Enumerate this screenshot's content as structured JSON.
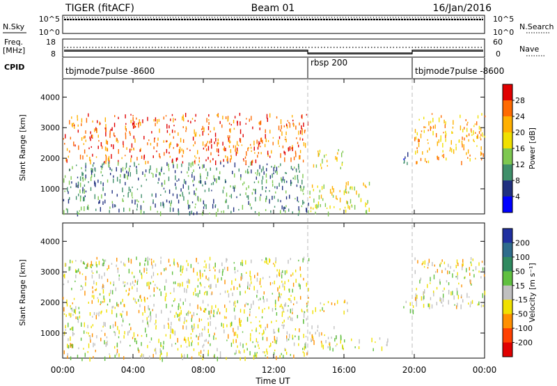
{
  "header": {
    "title": "TIGER (fitACF)",
    "beam": "Beam 01",
    "date": "16/Jan/2016"
  },
  "nsky_panel": {
    "left_label": "N.Sky",
    "right_label": "N.Search",
    "left_ticks": [
      "10^5",
      "10^0"
    ],
    "right_ticks": [
      "10^5",
      "10^0"
    ]
  },
  "freq_panel": {
    "left_label_line1": "Freq.",
    "left_label_line2": "[MHz]",
    "right_label": "Nave",
    "left_ticks": [
      "18",
      "8"
    ],
    "right_ticks": [
      "60",
      "0"
    ]
  },
  "cpid": {
    "label": "CPID",
    "segments": [
      {
        "text": "tbjmode7pulse -8600",
        "start_hour": 0,
        "end_hour": 14
      },
      {
        "text": "rbsp 200",
        "start_hour": 14,
        "end_hour": 20
      },
      {
        "text": "tbjmode7pulse -8600",
        "start_hour": 20,
        "end_hour": 24
      }
    ]
  },
  "power_panel": {
    "ylabel": "Slant Range [km]",
    "colorbar_label": "Power [dB]",
    "colorbar_ticks": [
      "28",
      "24",
      "20",
      "16",
      "12",
      "8",
      "4"
    ],
    "colorbar_colors": [
      "#e00000",
      "#ff6a00",
      "#ffb000",
      "#f0e000",
      "#7ec850",
      "#3f8f6a",
      "#203080",
      "#0000ff"
    ]
  },
  "velocity_panel": {
    "ylabel": "Slant Range [km]",
    "colorbar_label": "Velocity [m s⁻¹]",
    "colorbar_ticks": [
      "200",
      "100",
      "50",
      "15",
      "-15",
      "-50",
      "-100",
      "-200"
    ],
    "colorbar_colors": [
      "#2030a0",
      "#2e6c8c",
      "#308a60",
      "#60c040",
      "#c0c0c0",
      "#f0e000",
      "#ff9000",
      "#ff4000",
      "#e00000"
    ]
  },
  "xaxis": {
    "label": "Time UT",
    "ticks": [
      "00:00",
      "04:00",
      "08:00",
      "12:00",
      "16:00",
      "20:00",
      "00:00"
    ]
  },
  "chart_data": {
    "type": "heatmap",
    "title": "TIGER (fitACF)",
    "subtitle": "Beam 01",
    "date": "16/Jan/2016",
    "xlabel": "Time UT",
    "xlim_hours": [
      0,
      24
    ],
    "mode_change_hours": [
      14,
      20
    ],
    "panels": [
      {
        "name": "Power [dB]",
        "ylabel": "Slant Range [km]",
        "ylim": [
          180,
          4600
        ],
        "yticks": [
          1000,
          2000,
          3000,
          4000
        ],
        "colorbar_range": [
          0,
          32
        ],
        "regions": [
          {
            "hours": [
              0,
              14
            ],
            "range_km": [
              1900,
              3500
            ],
            "typical_value": 26
          },
          {
            "hours": [
              0,
              14
            ],
            "range_km": [
              200,
              1900
            ],
            "typical_value": 10
          },
          {
            "hours": [
              14,
              17.5
            ],
            "range_km": [
              250,
              1300
            ],
            "typical_value": 18
          },
          {
            "hours": [
              14.2,
              16.2
            ],
            "range_km": [
              1700,
              2300
            ],
            "typical_value": 18
          },
          {
            "hours": [
              19.2,
              20
            ],
            "range_km": [
              1800,
              2200
            ],
            "typical_value": 6
          },
          {
            "hours": [
              20,
              24
            ],
            "range_km": [
              1900,
              3500
            ],
            "typical_value": 22
          }
        ]
      },
      {
        "name": "Velocity [m s-1]",
        "ylabel": "Slant Range [km]",
        "ylim": [
          180,
          4600
        ],
        "yticks": [
          1000,
          2000,
          3000,
          4000
        ],
        "colorbar_range": [
          -250,
          250
        ],
        "regions": [
          {
            "hours": [
              0,
              14
            ],
            "range_km": [
              200,
              3500
            ],
            "typical_value": -20
          },
          {
            "hours": [
              14,
              15.5
            ],
            "range_km": [
              950,
              1300
            ],
            "typical_value": -60
          },
          {
            "hours": [
              14,
              18.5
            ],
            "range_km": [
              500,
              950
            ],
            "typical_value": 0
          },
          {
            "hours": [
              14.2,
              16.2
            ],
            "range_km": [
              1700,
              2100
            ],
            "typical_value": -60
          },
          {
            "hours": [
              19.3,
              20
            ],
            "range_km": [
              1700,
              2100
            ],
            "typical_value": 0
          },
          {
            "hours": [
              20,
              24
            ],
            "range_km": [
              1900,
              3500
            ],
            "typical_value": -20
          }
        ]
      }
    ]
  }
}
